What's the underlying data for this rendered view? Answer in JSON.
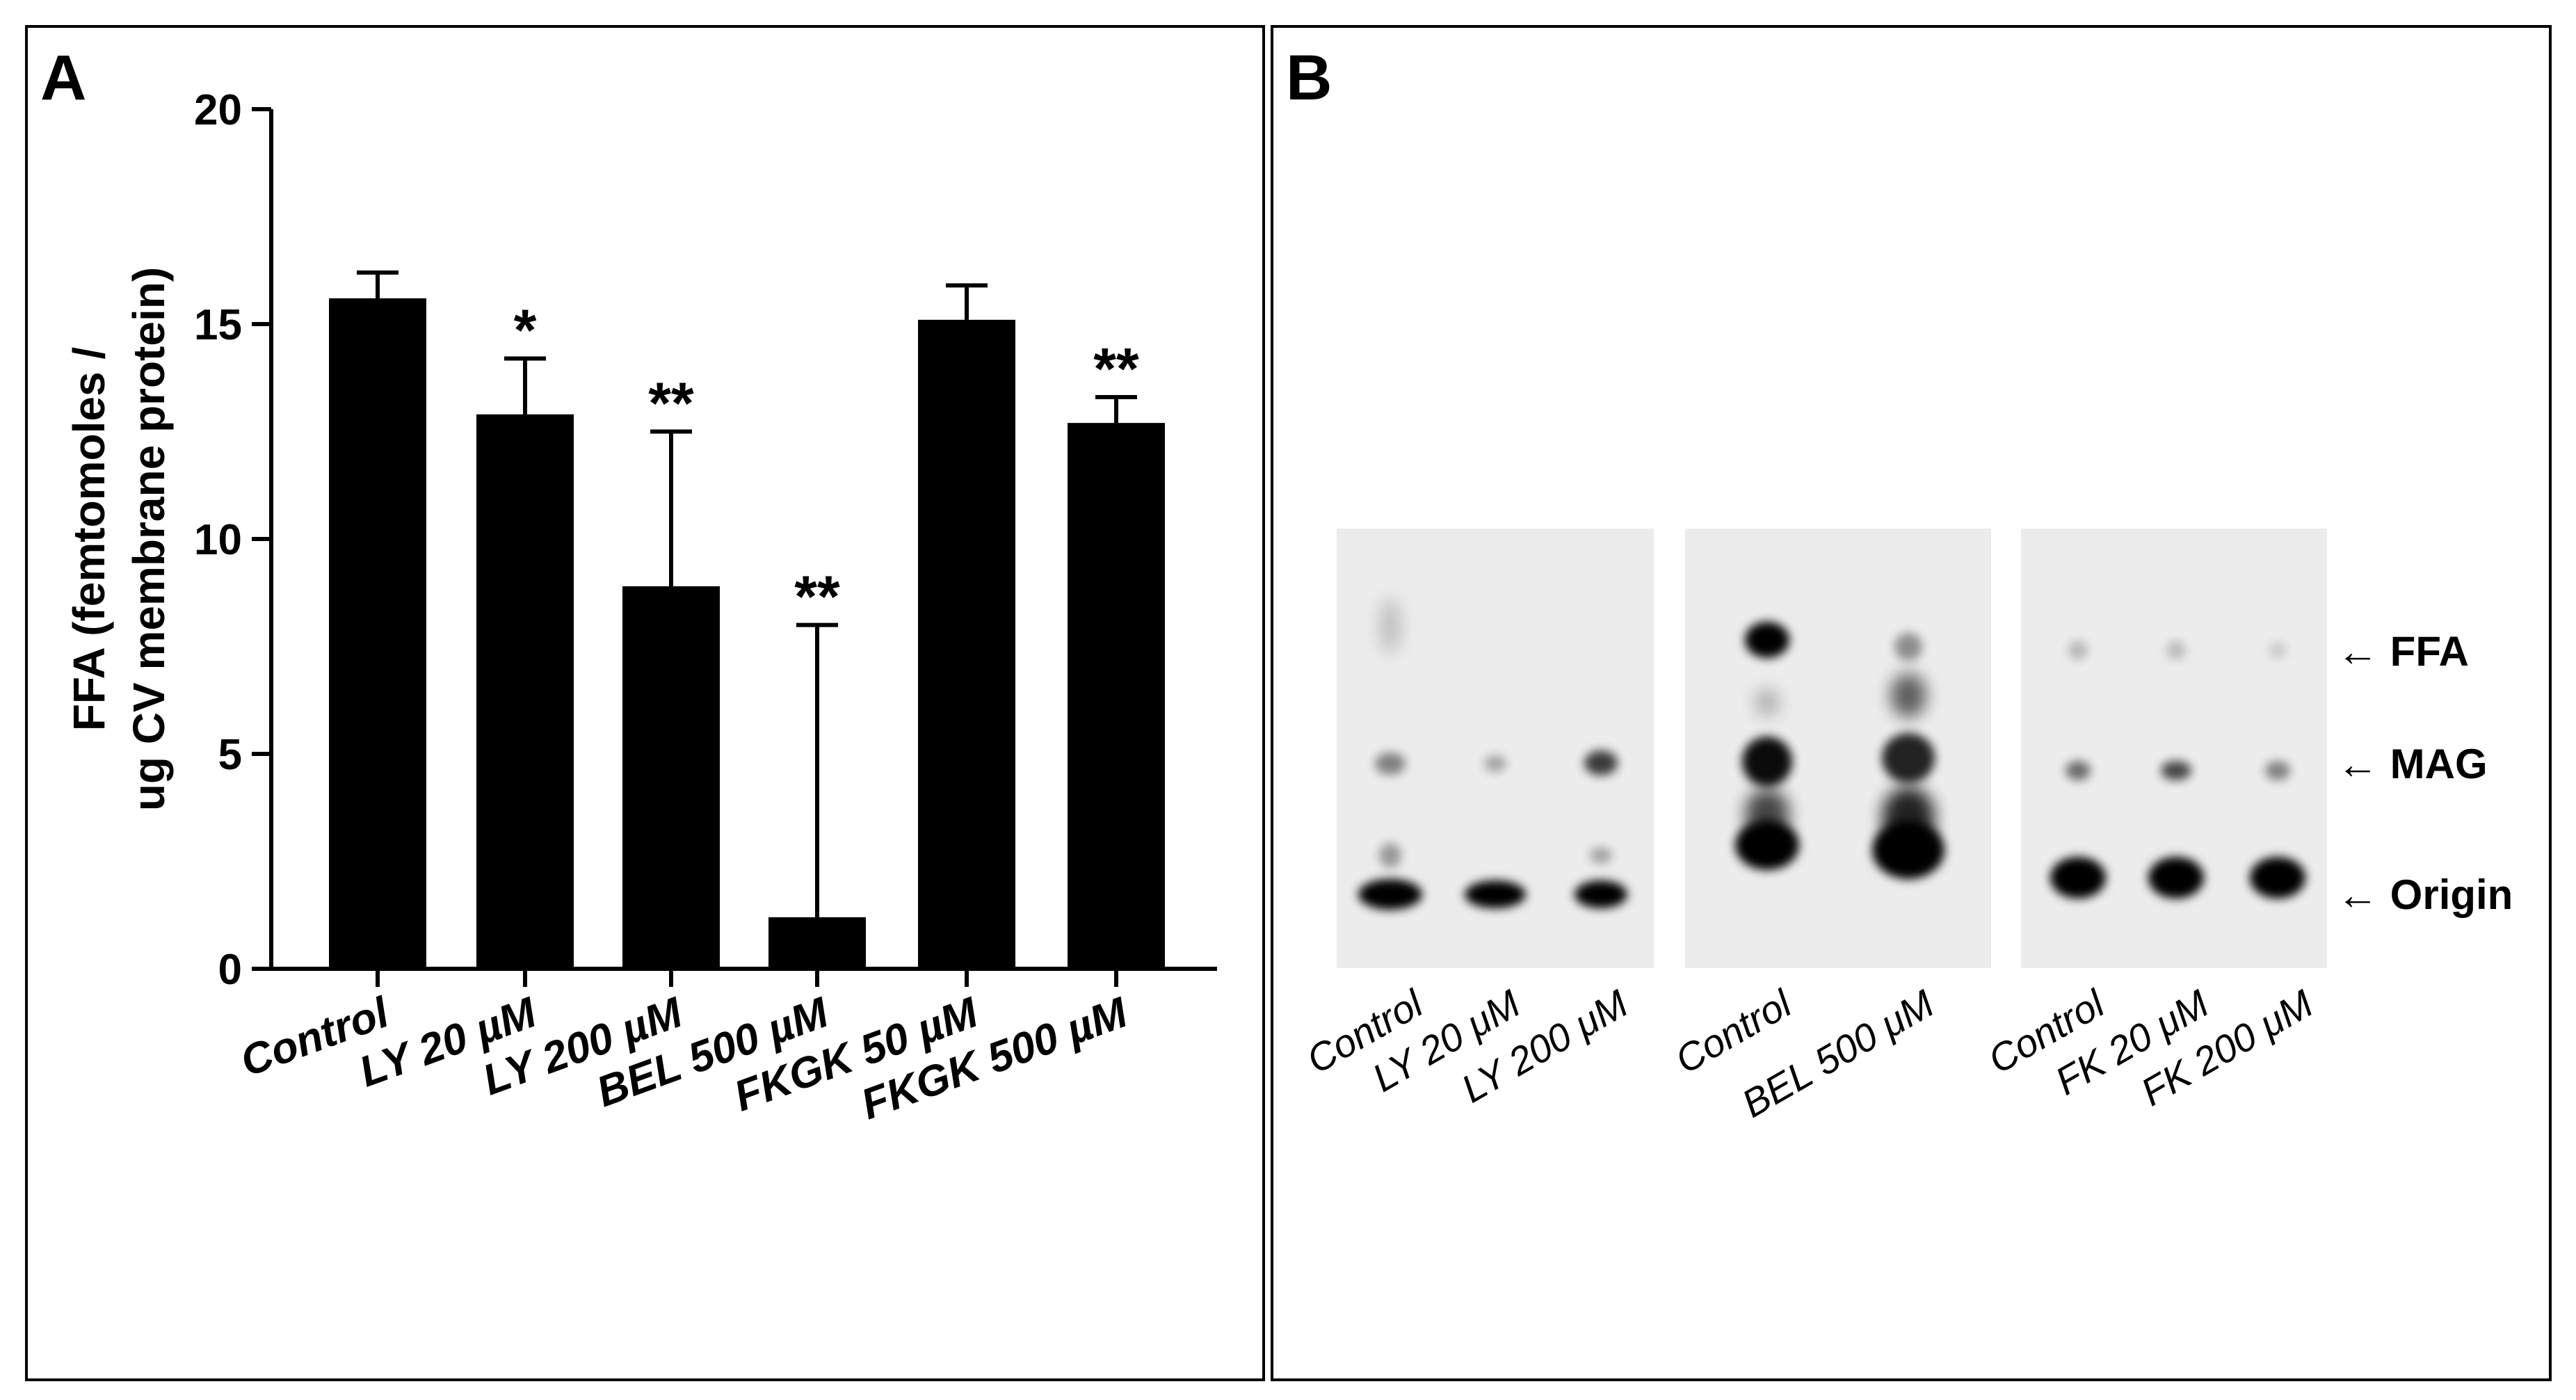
{
  "panels": {
    "a_label": "A",
    "b_label": "B"
  },
  "chart_data": {
    "type": "bar",
    "categories": [
      "Control",
      "LY 20 µM",
      "LY 200 µM",
      "BEL 500 µM",
      "FKGK 50 µM",
      "FKGK 500 µM"
    ],
    "values": [
      15.6,
      12.9,
      8.9,
      1.2,
      15.1,
      12.7
    ],
    "errors": [
      0.6,
      1.3,
      3.6,
      6.8,
      0.8,
      0.6
    ],
    "significance": [
      "",
      "*",
      "**",
      "**",
      "",
      "**"
    ],
    "ylabel_line1": "FFA (femtomoles /",
    "ylabel_line2": "ug CV membrane protein)",
    "ylim": [
      0,
      20
    ],
    "yticks": [
      0,
      5,
      10,
      15,
      20
    ],
    "bar_color": "#000000"
  },
  "tlc": {
    "groups": [
      {
        "lanes": [
          "Control",
          "LY 20 μM",
          "LY 200 μM"
        ]
      },
      {
        "lanes": [
          "Control",
          "BEL 500 μM"
        ]
      },
      {
        "lanes": [
          "Control",
          "FK 20 μM",
          "FK 200 μM"
        ]
      }
    ],
    "markers": [
      "← FFA",
      "← MAG",
      "← Origin"
    ]
  }
}
